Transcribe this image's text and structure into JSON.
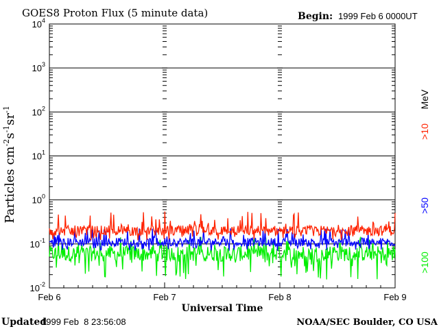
{
  "chart_data": {
    "type": "line",
    "title": "GOES8 Proton Flux (5 minute data)",
    "begin_label": "Begin:",
    "begin_value": "1999 Feb 6 0000UT",
    "ylabel": "Particles cm-2s-1sr-1",
    "ylabel_parts": {
      "base": "Particles cm",
      "exp1": "-2",
      "mid1": "s",
      "exp2": "-1",
      "mid2": "sr",
      "exp3": "-1"
    },
    "xlabel": "Universal Time",
    "y_scale": "log",
    "ylim": [
      0.01,
      10000
    ],
    "y_ticks": [
      {
        "base": "10",
        "exp": "-2",
        "value": 0.01
      },
      {
        "base": "10",
        "exp": "-1",
        "value": 0.1
      },
      {
        "base": "10",
        "exp": "0",
        "value": 1
      },
      {
        "base": "10",
        "exp": "1",
        "value": 10
      },
      {
        "base": "10",
        "exp": "2",
        "value": 100
      },
      {
        "base": "10",
        "exp": "3",
        "value": 1000
      },
      {
        "base": "10",
        "exp": "4",
        "value": 10000
      }
    ],
    "x_ticks": [
      "Feb 6",
      "Feb 7",
      "Feb 8",
      "Feb 9"
    ],
    "xlim_days": [
      0,
      3
    ],
    "grid": true,
    "series": [
      {
        "name": ">10",
        "color": "#ff2200",
        "typical": 0.2,
        "range": [
          0.12,
          0.55
        ]
      },
      {
        "name": ">50",
        "color": "#0000ff",
        "typical": 0.11,
        "range": [
          0.07,
          0.25
        ]
      },
      {
        "name": ">100",
        "color": "#00ee00",
        "typical": 0.06,
        "range": [
          0.015,
          0.15
        ]
      }
    ],
    "legend_unit": "MeV",
    "legend_position": "right"
  },
  "footer": {
    "updated_label": "Updated",
    "updated_value": "1999 Feb  8 23:56:08",
    "credit": "NOAA/SEC Boulder, CO USA"
  }
}
